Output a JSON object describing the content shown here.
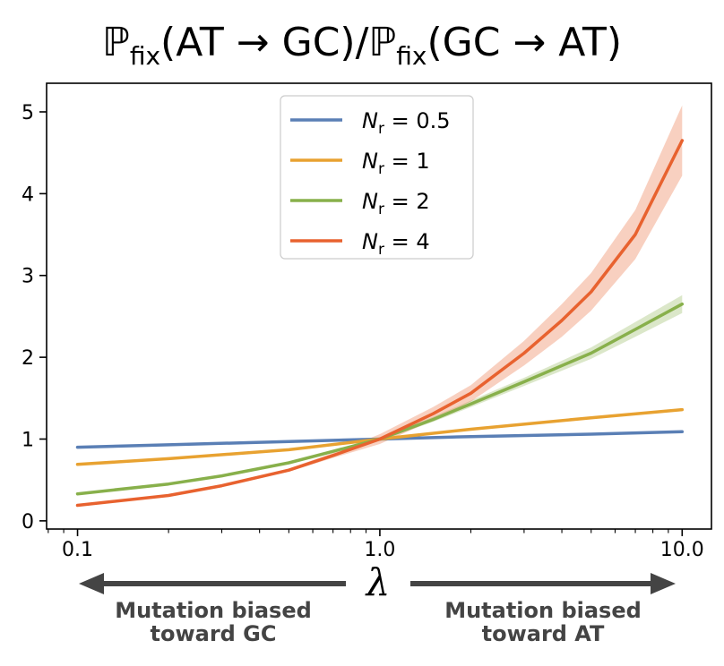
{
  "title": {
    "prefix": "ℙ",
    "sub1": "fix",
    "mid": "(AT → GC)/",
    "prefix2": "ℙ",
    "sub2": "fix",
    "end": "(GC → AT)"
  },
  "chart_data": {
    "type": "line",
    "xscale": "log",
    "xlim": [
      0.079,
      12.5
    ],
    "ylim": [
      -0.1,
      5.35
    ],
    "xticks": [
      0.1,
      1.0,
      10.0
    ],
    "xtick_labels": [
      "0.1",
      "1.0",
      "10.0"
    ],
    "yticks": [
      0,
      1,
      2,
      3,
      4,
      5
    ],
    "ytick_labels": [
      "0",
      "1",
      "2",
      "3",
      "4",
      "5"
    ],
    "xlabel": "λ",
    "legend_placement": "top-center",
    "series": [
      {
        "name": "N_r = 0.5",
        "label_var": "N",
        "label_sub": "r",
        "label_val": " = 0.5",
        "color": "#5a7fb5",
        "x": [
          0.1,
          0.2,
          0.5,
          1.0,
          2.0,
          5.0,
          10.0
        ],
        "y": [
          0.9,
          0.93,
          0.97,
          1.0,
          1.03,
          1.06,
          1.09
        ],
        "band": [
          [
            0.9,
            0.9
          ],
          [
            0.93,
            0.93
          ],
          [
            0.97,
            0.97
          ],
          [
            1.0,
            1.0
          ],
          [
            1.03,
            1.03
          ],
          [
            1.06,
            1.06
          ],
          [
            1.09,
            1.09
          ]
        ]
      },
      {
        "name": "N_r = 1",
        "label_var": "N",
        "label_sub": "r",
        "label_val": " = 1",
        "color": "#e8a231",
        "x": [
          0.1,
          0.2,
          0.5,
          1.0,
          2.0,
          5.0,
          10.0
        ],
        "y": [
          0.69,
          0.76,
          0.87,
          1.0,
          1.12,
          1.26,
          1.36
        ],
        "band": [
          [
            0.69,
            0.69
          ],
          [
            0.76,
            0.76
          ],
          [
            0.87,
            0.87
          ],
          [
            1.0,
            1.0
          ],
          [
            1.12,
            1.12
          ],
          [
            1.26,
            1.26
          ],
          [
            1.36,
            1.36
          ]
        ]
      },
      {
        "name": "N_r = 2",
        "label_var": "N",
        "label_sub": "r",
        "label_val": " = 2",
        "color": "#88b04b",
        "x": [
          0.1,
          0.2,
          0.3,
          0.5,
          0.7,
          1.0,
          1.5,
          2.0,
          3.0,
          5.0,
          7.0,
          10.0
        ],
        "y": [
          0.33,
          0.45,
          0.55,
          0.71,
          0.85,
          1.0,
          1.24,
          1.43,
          1.7,
          2.05,
          2.34,
          2.65
        ],
        "band": [
          [
            0.32,
            0.34
          ],
          [
            0.44,
            0.46
          ],
          [
            0.54,
            0.56
          ],
          [
            0.7,
            0.72
          ],
          [
            0.84,
            0.86
          ],
          [
            0.98,
            1.02
          ],
          [
            1.21,
            1.27
          ],
          [
            1.39,
            1.47
          ],
          [
            1.65,
            1.75
          ],
          [
            1.98,
            2.12
          ],
          [
            2.25,
            2.43
          ],
          [
            2.54,
            2.76
          ]
        ]
      },
      {
        "name": "N_r = 4",
        "label_var": "N",
        "label_sub": "r",
        "label_val": " = 4",
        "color": "#e8622f",
        "x": [
          0.1,
          0.2,
          0.3,
          0.5,
          0.7,
          1.0,
          1.5,
          2.0,
          3.0,
          4.0,
          5.0,
          7.0,
          10.0
        ],
        "y": [
          0.19,
          0.31,
          0.43,
          0.62,
          0.8,
          1.0,
          1.31,
          1.56,
          2.05,
          2.45,
          2.8,
          3.5,
          4.65
        ],
        "band": [
          [
            0.18,
            0.2
          ],
          [
            0.3,
            0.32
          ],
          [
            0.42,
            0.44
          ],
          [
            0.6,
            0.64
          ],
          [
            0.77,
            0.83
          ],
          [
            0.94,
            1.06
          ],
          [
            1.23,
            1.39
          ],
          [
            1.46,
            1.66
          ],
          [
            1.9,
            2.2
          ],
          [
            2.25,
            2.65
          ],
          [
            2.57,
            3.03
          ],
          [
            3.2,
            3.8
          ],
          [
            4.22,
            5.08
          ]
        ]
      }
    ]
  },
  "annotations": {
    "left_line1": "Mutation biased",
    "left_line2": "toward GC",
    "right_line1": "Mutation biased",
    "right_line2": "toward AT",
    "arrow_color": "#444444"
  }
}
